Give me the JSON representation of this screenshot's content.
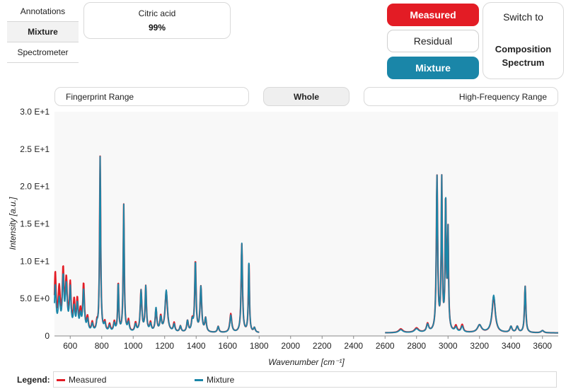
{
  "side_tabs": [
    {
      "label": "Annotations",
      "active": false
    },
    {
      "label": "Mixture",
      "active": true
    },
    {
      "label": "Spectrometer",
      "active": false
    }
  ],
  "compound": {
    "name": "Citric acid",
    "percent": "99%"
  },
  "mode_buttons": {
    "measured": "Measured",
    "residual": "Residual",
    "mixture": "Mixture"
  },
  "switch": {
    "top": "Switch to",
    "bottom": "Composition Spectrum"
  },
  "ranges": {
    "fingerprint": "Fingerprint Range",
    "whole": "Whole",
    "high_frequency": "High-Frequency Range"
  },
  "legend": {
    "title": "Legend:"
  },
  "colors": {
    "measured": "#e31c25",
    "mixture": "#1a86a8"
  },
  "chart_data": {
    "type": "line",
    "xlabel": "Wavenumber [cm⁻¹]",
    "ylabel": "Intensity [a.u.]",
    "xlim": [
      500,
      3700
    ],
    "ylim": [
      0,
      30
    ],
    "x_ticks": [
      600,
      800,
      1000,
      1200,
      1400,
      1600,
      1800,
      2000,
      2200,
      2400,
      2600,
      2800,
      3000,
      3200,
      3400,
      3600
    ],
    "y_ticks": [
      {
        "value": 0,
        "label": "0"
      },
      {
        "value": 5,
        "label": "5.0 E+0"
      },
      {
        "value": 10,
        "label": "1.0 E+1"
      },
      {
        "value": 15,
        "label": "1.5 E+1"
      },
      {
        "value": 20,
        "label": "2.0 E+1"
      },
      {
        "value": 25,
        "label": "2.5 E+1"
      },
      {
        "value": 30,
        "label": "3.0 E+1"
      }
    ],
    "grid": false,
    "legend_position": "bottom",
    "segments": [
      [
        500,
        1800
      ],
      [
        2600,
        3700
      ]
    ],
    "series": [
      {
        "name": "Measured",
        "color": "#e31c25",
        "baseline": 0.4,
        "peaks": [
          [
            505,
            7.6,
            6
          ],
          [
            530,
            5.5,
            8
          ],
          [
            555,
            7.6,
            6
          ],
          [
            575,
            6.5,
            7
          ],
          [
            600,
            6.0,
            6
          ],
          [
            625,
            3.8,
            6
          ],
          [
            645,
            4.0,
            6
          ],
          [
            665,
            2.5,
            6
          ],
          [
            685,
            6.2,
            6
          ],
          [
            710,
            1.8,
            6
          ],
          [
            740,
            1.2,
            6
          ],
          [
            770,
            1.0,
            5
          ],
          [
            790,
            23.4,
            4
          ],
          [
            820,
            1.2,
            6
          ],
          [
            850,
            1.0,
            6
          ],
          [
            880,
            1.3,
            6
          ],
          [
            905,
            6.6,
            4
          ],
          [
            940,
            17.0,
            4
          ],
          [
            970,
            1.5,
            6
          ],
          [
            1015,
            1.2,
            6
          ],
          [
            1050,
            5.5,
            6
          ],
          [
            1080,
            6.0,
            5
          ],
          [
            1110,
            1.2,
            6
          ],
          [
            1145,
            3.0,
            6
          ],
          [
            1175,
            2.0,
            6
          ],
          [
            1210,
            5.4,
            9
          ],
          [
            1260,
            1.2,
            6
          ],
          [
            1300,
            0.8,
            6
          ],
          [
            1345,
            1.5,
            6
          ],
          [
            1375,
            1.5,
            6
          ],
          [
            1395,
            9.5,
            5
          ],
          [
            1430,
            6.0,
            6
          ],
          [
            1460,
            1.8,
            6
          ],
          [
            1540,
            0.8,
            6
          ],
          [
            1620,
            2.5,
            7
          ],
          [
            1690,
            11.8,
            5
          ],
          [
            1735,
            9.5,
            4
          ],
          [
            1770,
            0.6,
            6
          ],
          [
            2700,
            0.5,
            15
          ],
          [
            2800,
            0.6,
            15
          ],
          [
            2870,
            1.1,
            8
          ],
          [
            2930,
            20.6,
            5
          ],
          [
            2960,
            20.0,
            4
          ],
          [
            2985,
            17.4,
            4
          ],
          [
            3000,
            13.0,
            4
          ],
          [
            3050,
            0.8,
            8
          ],
          [
            3090,
            1.0,
            8
          ],
          [
            3200,
            1.0,
            15
          ],
          [
            3290,
            4.8,
            12
          ],
          [
            3400,
            0.8,
            8
          ],
          [
            3440,
            0.8,
            8
          ],
          [
            3490,
            6.2,
            5
          ],
          [
            3600,
            0.3,
            10
          ]
        ]
      },
      {
        "name": "Mixture",
        "color": "#1a86a8",
        "baseline": 0.4,
        "peaks": [
          [
            505,
            6.0,
            6
          ],
          [
            530,
            4.0,
            8
          ],
          [
            555,
            6.8,
            6
          ],
          [
            575,
            5.8,
            7
          ],
          [
            600,
            5.5,
            6
          ],
          [
            625,
            3.0,
            6
          ],
          [
            645,
            3.5,
            6
          ],
          [
            665,
            2.0,
            6
          ],
          [
            685,
            5.5,
            6
          ],
          [
            710,
            1.5,
            6
          ],
          [
            740,
            1.0,
            6
          ],
          [
            770,
            0.8,
            5
          ],
          [
            790,
            23.4,
            4
          ],
          [
            820,
            1.0,
            6
          ],
          [
            850,
            0.8,
            6
          ],
          [
            880,
            1.1,
            6
          ],
          [
            905,
            6.5,
            4
          ],
          [
            940,
            17.0,
            4
          ],
          [
            970,
            1.2,
            6
          ],
          [
            1015,
            1.0,
            6
          ],
          [
            1050,
            5.5,
            6
          ],
          [
            1080,
            6.0,
            5
          ],
          [
            1110,
            1.0,
            6
          ],
          [
            1145,
            3.2,
            6
          ],
          [
            1175,
            1.8,
            6
          ],
          [
            1210,
            5.6,
            9
          ],
          [
            1260,
            1.0,
            6
          ],
          [
            1300,
            0.8,
            6
          ],
          [
            1345,
            1.5,
            6
          ],
          [
            1375,
            1.4,
            6
          ],
          [
            1395,
            9.4,
            5
          ],
          [
            1430,
            6.0,
            6
          ],
          [
            1460,
            1.8,
            6
          ],
          [
            1540,
            0.8,
            6
          ],
          [
            1620,
            2.3,
            7
          ],
          [
            1690,
            11.9,
            5
          ],
          [
            1735,
            9.7,
            4
          ],
          [
            1770,
            0.6,
            6
          ],
          [
            2700,
            0.4,
            15
          ],
          [
            2800,
            0.5,
            15
          ],
          [
            2870,
            1.0,
            8
          ],
          [
            2930,
            20.6,
            5
          ],
          [
            2960,
            20.0,
            4
          ],
          [
            2985,
            17.5,
            4
          ],
          [
            3000,
            13.0,
            4
          ],
          [
            3050,
            0.6,
            8
          ],
          [
            3090,
            0.8,
            8
          ],
          [
            3200,
            1.0,
            15
          ],
          [
            3290,
            5.0,
            12
          ],
          [
            3400,
            0.8,
            8
          ],
          [
            3440,
            0.8,
            8
          ],
          [
            3490,
            6.2,
            5
          ],
          [
            3600,
            0.3,
            10
          ]
        ]
      }
    ]
  }
}
